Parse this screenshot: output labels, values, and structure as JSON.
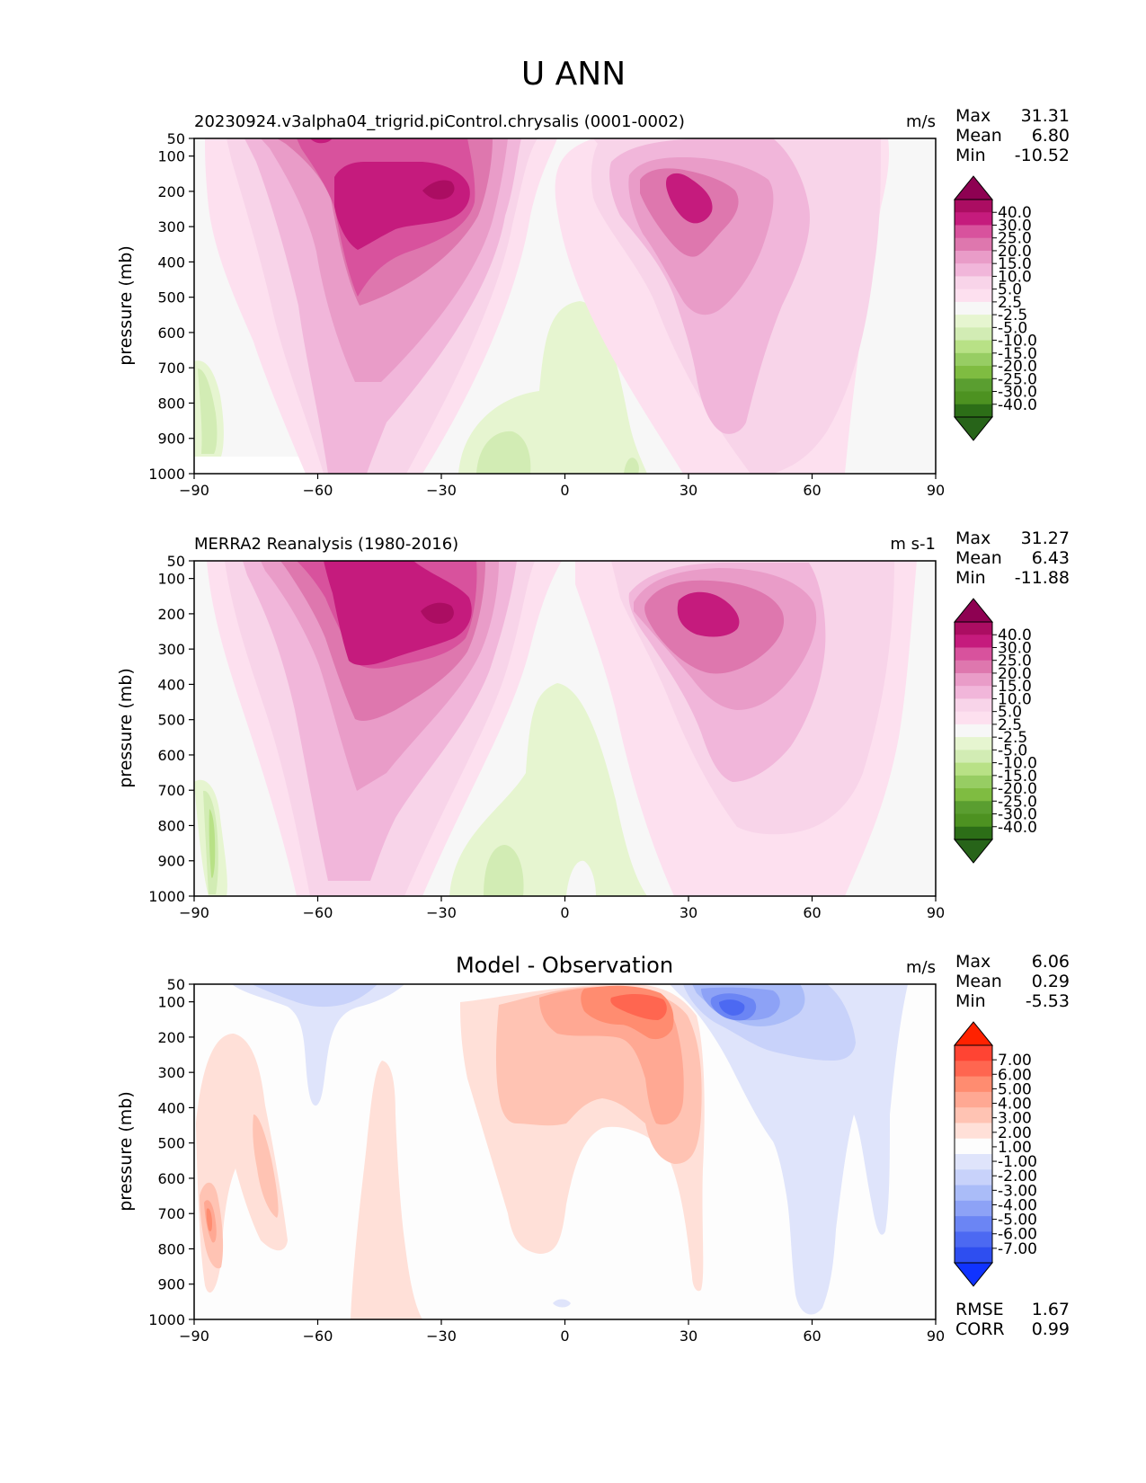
{
  "figure": {
    "title": "U ANN"
  },
  "chart_data": [
    {
      "type": "contour",
      "title_left": "20230924.v3alpha04_trigrid.piControl.chrysalis (0001-0002)",
      "title_center": "",
      "units": "m/s",
      "xlabel": "",
      "ylabel": "pressure (mb)",
      "xlim": [
        -90,
        90
      ],
      "ylim": [
        1000,
        50
      ],
      "x_ticks": [
        "−90",
        "−60",
        "−30",
        "0",
        "30",
        "60",
        "90"
      ],
      "y_ticks": [
        "50",
        "100",
        "200",
        "300",
        "400",
        "500",
        "600",
        "700",
        "800",
        "900",
        "1000"
      ],
      "stats": [
        {
          "label": "Max",
          "value": "31.31"
        },
        {
          "label": "Mean",
          "value": "6.80"
        },
        {
          "label": "Min",
          "value": "-10.52"
        }
      ],
      "colorbar": {
        "labels": [
          "40.0",
          "30.0",
          "25.0",
          "20.0",
          "15.0",
          "10.0",
          "5.0",
          "2.5",
          "-2.5",
          "-5.0",
          "-10.0",
          "-15.0",
          "-20.0",
          "-25.0",
          "-30.0",
          "-40.0"
        ],
        "colors": [
          "#8e0152",
          "#ab0d62",
          "#c51b7d",
          "#d8529d",
          "#de77ae",
          "#e99cc8",
          "#f1b6da",
          "#f8d4e9",
          "#fde0ef",
          "#f7f7f7",
          "#e6f5d0",
          "#d2ecb4",
          "#b8e186",
          "#97cd63",
          "#7fbc41",
          "#5a9e30",
          "#4d9221",
          "#2c6e17",
          "#276419"
        ]
      },
      "features": [
        {
          "name": "sh-jet-core",
          "lat": -45,
          "p": 200,
          "u": 31.31
        },
        {
          "name": "nh-jet-core",
          "lat": 34,
          "p": 220,
          "u": 27
        },
        {
          "name": "tropical-easterlies",
          "lat": -10,
          "p": 950,
          "u": -10.5
        }
      ]
    },
    {
      "type": "contour",
      "title_left": "MERRA2 Reanalysis (1980-2016)",
      "title_center": "",
      "units": "m s-1",
      "xlabel": "",
      "ylabel": "pressure (mb)",
      "xlim": [
        -90,
        90
      ],
      "ylim": [
        1000,
        50
      ],
      "x_ticks": [
        "−90",
        "−60",
        "−30",
        "0",
        "30",
        "60",
        "90"
      ],
      "y_ticks": [
        "50",
        "100",
        "200",
        "300",
        "400",
        "500",
        "600",
        "700",
        "800",
        "900",
        "1000"
      ],
      "stats": [
        {
          "label": "Max",
          "value": "31.27"
        },
        {
          "label": "Mean",
          "value": "6.43"
        },
        {
          "label": "Min",
          "value": "-11.88"
        }
      ],
      "colorbar": {
        "labels": [
          "40.0",
          "30.0",
          "25.0",
          "20.0",
          "15.0",
          "10.0",
          "5.0",
          "2.5",
          "-2.5",
          "-5.0",
          "-10.0",
          "-15.0",
          "-20.0",
          "-25.0",
          "-30.0",
          "-40.0"
        ],
        "colors": [
          "#8e0152",
          "#ab0d62",
          "#c51b7d",
          "#d8529d",
          "#de77ae",
          "#e99cc8",
          "#f1b6da",
          "#f8d4e9",
          "#fde0ef",
          "#f7f7f7",
          "#e6f5d0",
          "#d2ecb4",
          "#b8e186",
          "#97cd63",
          "#7fbc41",
          "#5a9e30",
          "#4d9221",
          "#2c6e17",
          "#276419"
        ]
      },
      "features": [
        {
          "name": "sh-jet-core",
          "lat": -42,
          "p": 200,
          "u": 31.27
        },
        {
          "name": "nh-jet-core",
          "lat": 36,
          "p": 200,
          "u": 28
        },
        {
          "name": "tropical-easterlies",
          "lat": -12,
          "p": 950,
          "u": -11.88
        }
      ]
    },
    {
      "type": "contour",
      "title_left": "",
      "title_center": "Model - Observation",
      "units": "m/s",
      "xlabel": "",
      "ylabel": "pressure (mb)",
      "xlim": [
        -90,
        90
      ],
      "ylim": [
        1000,
        50
      ],
      "x_ticks": [
        "−90",
        "−60",
        "−30",
        "0",
        "30",
        "60",
        "90"
      ],
      "y_ticks": [
        "50",
        "100",
        "200",
        "300",
        "400",
        "500",
        "600",
        "700",
        "800",
        "900",
        "1000"
      ],
      "stats": [
        {
          "label": "Max",
          "value": "6.06"
        },
        {
          "label": "Mean",
          "value": "0.29"
        },
        {
          "label": "Min",
          "value": "-5.53"
        }
      ],
      "extra_stats": [
        {
          "label": "RMSE",
          "value": "1.67"
        },
        {
          "label": "CORR",
          "value": "0.99"
        }
      ],
      "colorbar": {
        "labels": [
          "7.00",
          "6.00",
          "5.00",
          "4.00",
          "3.00",
          "2.00",
          "1.00",
          "-1.00",
          "-2.00",
          "-3.00",
          "-4.00",
          "-5.00",
          "-6.00",
          "-7.00"
        ],
        "colors": [
          "#ff2200",
          "#ff4433",
          "#ff6650",
          "#ff8c70",
          "#ffa893",
          "#ffc3b3",
          "#ffe0d8",
          "#fdfdfd",
          "#dfe4fb",
          "#c8d2fa",
          "#aabcf8",
          "#8da2f6",
          "#6b85f4",
          "#4c69f2",
          "#2e4ef0",
          "#1033ff"
        ]
      },
      "features": [
        {
          "name": "upper-positive-bias",
          "lat": 20,
          "p": 100,
          "u": 6.06
        },
        {
          "name": "upper-negative-bias",
          "lat": 40,
          "p": 100,
          "u": -5.53
        }
      ]
    }
  ]
}
